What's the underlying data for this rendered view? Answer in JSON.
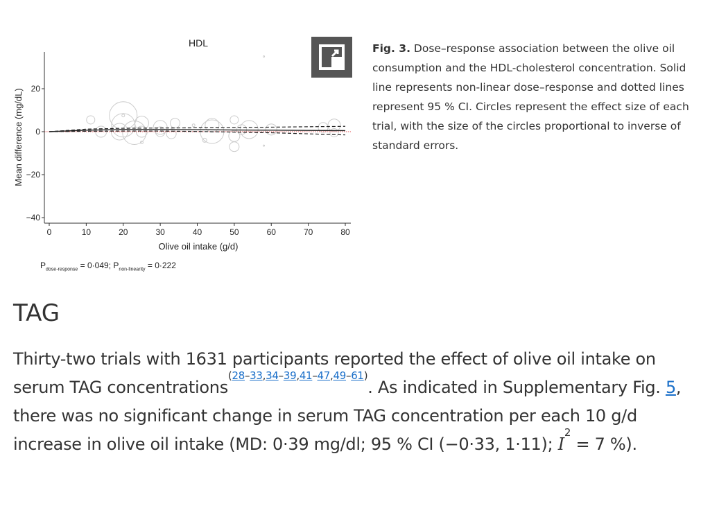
{
  "figure": {
    "expand_icon": "expand-icon",
    "caption_label": "Fig. 3.",
    "caption_text": " Dose–response association between the olive oil consumption and the HDL-cholesterol concentration. Solid line represents non-linear dose–response and dotted lines represent 95 % CI. Circles represent the effect size of each trial, with the size of the circles proportional to inverse of standard errors.",
    "p_dose_label": "P",
    "p_dose_sub": "dose-response",
    "p_dose_value": " = 0·049; ",
    "p_nonlin_label": "P",
    "p_nonlin_sub": "non-linearity",
    "p_nonlin_value": " = 0·222"
  },
  "chart_data": {
    "type": "scatter",
    "title": "HDL",
    "xlabel": "Olive oil intake (g/d)",
    "ylabel": "Mean difference (mg/dL)",
    "xlim": [
      0,
      80
    ],
    "ylim": [
      -40,
      35
    ],
    "xticks": [
      0,
      10,
      20,
      30,
      40,
      50,
      60,
      70,
      80
    ],
    "yticks": [
      -40,
      -20,
      0,
      20
    ],
    "trials": [
      {
        "x": 11.2,
        "y": 5.5,
        "w": 6
      },
      {
        "x": 14,
        "y": 0,
        "w": 8
      },
      {
        "x": 20,
        "y": 7.5,
        "w": 20
      },
      {
        "x": 20,
        "y": 3,
        "w": 17
      },
      {
        "x": 19,
        "y": 0,
        "w": 12
      },
      {
        "x": 23,
        "y": -0.5,
        "w": 17
      },
      {
        "x": 25,
        "y": 4,
        "w": 10
      },
      {
        "x": 25,
        "y": 0,
        "w": 8
      },
      {
        "x": 30,
        "y": 2,
        "w": 10
      },
      {
        "x": 30,
        "y": 0,
        "w": 7
      },
      {
        "x": 34,
        "y": 4,
        "w": 7
      },
      {
        "x": 33,
        "y": -1,
        "w": 7
      },
      {
        "x": 44,
        "y": 0,
        "w": 17
      },
      {
        "x": 44,
        "y": 3,
        "w": 10
      },
      {
        "x": 42,
        "y": -4,
        "w": 3
      },
      {
        "x": 50,
        "y": 5.5,
        "w": 6
      },
      {
        "x": 50,
        "y": -2,
        "w": 8
      },
      {
        "x": 50,
        "y": -7,
        "w": 7
      },
      {
        "x": 52,
        "y": 1,
        "w": 7
      },
      {
        "x": 54,
        "y": 1,
        "w": 13
      },
      {
        "x": 60,
        "y": 1,
        "w": 8
      },
      {
        "x": 74,
        "y": 2,
        "w": 7
      },
      {
        "x": 77,
        "y": 3,
        "w": 9
      },
      {
        "x": 77,
        "y": -0.5,
        "w": 6
      },
      {
        "x": 20,
        "y": 7.5,
        "w": 2
      },
      {
        "x": 25,
        "y": -5,
        "w": 2
      },
      {
        "x": 39,
        "y": 3,
        "w": 2
      },
      {
        "x": 58,
        "y": 35,
        "w": 1
      },
      {
        "x": 58,
        "y": -6.5,
        "w": 1
      }
    ],
    "fit": {
      "x": [
        0,
        10,
        20,
        30,
        40,
        50,
        60,
        70,
        80
      ],
      "y": [
        0,
        0.7,
        1.0,
        1.0,
        0.9,
        0.8,
        0.7,
        0.6,
        0.5
      ]
    },
    "ci_upper": {
      "x": [
        0,
        10,
        20,
        30,
        40,
        50,
        60,
        70,
        80
      ],
      "y": [
        0,
        1.2,
        1.6,
        1.7,
        1.8,
        1.9,
        2.1,
        2.3,
        2.5
      ]
    },
    "ci_lower": {
      "x": [
        0,
        10,
        20,
        30,
        40,
        50,
        60,
        70,
        80
      ],
      "y": [
        0,
        0.2,
        0.3,
        0.3,
        0.1,
        -0.2,
        -0.5,
        -1.0,
        -1.5
      ]
    },
    "reference_line": 0,
    "colors": {
      "circles": "#cccccc",
      "fit": "#222222",
      "reference": "#e05050"
    }
  },
  "section": {
    "heading": "TAG",
    "p1": "Thirty-two trials with 1631 participants reported the effect of olive oil intake on serum TAG concentrations",
    "refs": [
      "(",
      "28",
      "–",
      "33",
      ",",
      "34",
      "–",
      "39",
      ",",
      "41",
      "–",
      "47",
      ",",
      "49",
      "–",
      "61",
      ")"
    ],
    "p2": ". As indicated in Supplementary Fig. ",
    "fig_link": "5",
    "p3": ", there was no significant change in serum TAG concentration per each 10 g/d increase in olive oil intake (MD: 0·39 mg/dl; 95 % CI (−0·33, 1·11); ",
    "i_sym": "I",
    "i_sup": "2",
    "p4": " = 7 %)."
  }
}
